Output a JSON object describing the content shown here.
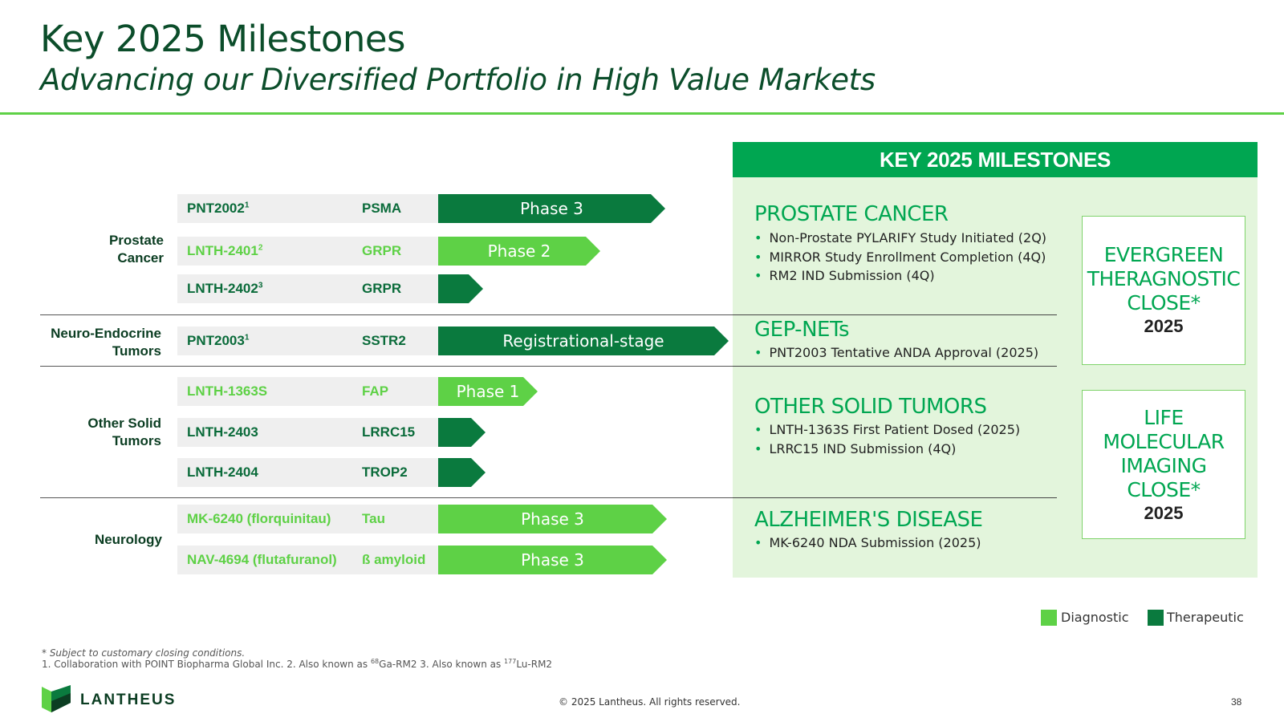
{
  "header": {
    "title": "Key 2025 Milestones",
    "subtitle": "Advancing our Diversified Portfolio in High Value Markets"
  },
  "categories": {
    "prostate": [
      "Prostate",
      "Cancer"
    ],
    "neuro": [
      "Neuro-Endocrine",
      "Tumors"
    ],
    "solid": [
      "Other Solid",
      "Tumors"
    ],
    "neurology": "Neurology"
  },
  "pipeline": [
    {
      "product": "PNT2002",
      "sup": "1",
      "target": "PSMA",
      "phase": "Phase 3",
      "type": "therapeutic"
    },
    {
      "product": "LNTH-2401",
      "sup": "2",
      "target": "GRPR",
      "phase": "Phase 2",
      "type": "diagnostic"
    },
    {
      "product": "LNTH-2402",
      "sup": "3",
      "target": "GRPR",
      "phase": "",
      "type": "therapeutic"
    },
    {
      "product": "PNT2003",
      "sup": "1",
      "target": "SSTR2",
      "phase": "Registrational-stage",
      "type": "therapeutic"
    },
    {
      "product": "LNTH-1363S",
      "sup": "",
      "target": "FAP",
      "phase": "Phase 1",
      "type": "diagnostic"
    },
    {
      "product": "LNTH-2403",
      "sup": "",
      "target": "LRRC15",
      "phase": "",
      "type": "therapeutic"
    },
    {
      "product": "LNTH-2404",
      "sup": "",
      "target": "TROP2",
      "phase": "",
      "type": "therapeutic"
    },
    {
      "product": "MK-6240 (florquinitau)",
      "sup": "",
      "target": "Tau",
      "phase": "Phase 3",
      "type": "diagnostic"
    },
    {
      "product": "NAV-4694 (flutafuranol)",
      "sup": "",
      "target": "ß amyloid",
      "phase": "Phase 3",
      "type": "diagnostic"
    }
  ],
  "milestones": {
    "header": "KEY 2025 MILESTONES",
    "sections": [
      {
        "heading": "PROSTATE CANCER",
        "items": [
          "Non-Prostate PYLARIFY Study Initiated (2Q)",
          "MIRROR Study Enrollment Completion (4Q)",
          "RM2 IND Submission (4Q)"
        ]
      },
      {
        "heading": "GEP-NETs",
        "items": [
          "PNT2003 Tentative ANDA Approval (2025)"
        ]
      },
      {
        "heading": "OTHER SOLID TUMORS",
        "items": [
          "LNTH-1363S First Patient Dosed (2025)",
          "LRRC15 IND Submission (4Q)"
        ]
      },
      {
        "heading": "ALZHEIMER'S DISEASE",
        "items": [
          "MK-6240 NDA Submission (2025)"
        ]
      }
    ],
    "closes": [
      {
        "lines": [
          "EVERGREEN",
          "THERAGNOSTIC",
          "CLOSE*"
        ],
        "year": "2025"
      },
      {
        "lines": [
          "LIFE",
          "MOLECULAR",
          "IMAGING",
          "CLOSE*"
        ],
        "year": "2025"
      }
    ]
  },
  "legend": {
    "diagnostic": "Diagnostic",
    "therapeutic": "Therapeutic"
  },
  "colors": {
    "diagnostic": "#5ed146",
    "therapeutic": "#0a7a3e",
    "accent": "#00a651",
    "title": "#0b4d2a"
  },
  "footnotes": {
    "closing": "* Subject to customary closing conditions.",
    "refs_a": "1. Collaboration with POINT Biopharma Global Inc. 2. Also known as ",
    "refs_sup1": "68",
    "refs_b": "Ga-RM2 3. Also known as ",
    "refs_sup2": "177",
    "refs_c": "Lu-RM2"
  },
  "footer": {
    "logo_text": "LANTHEUS",
    "copyright": "© 2025 Lantheus. All rights reserved.",
    "page": "38"
  }
}
